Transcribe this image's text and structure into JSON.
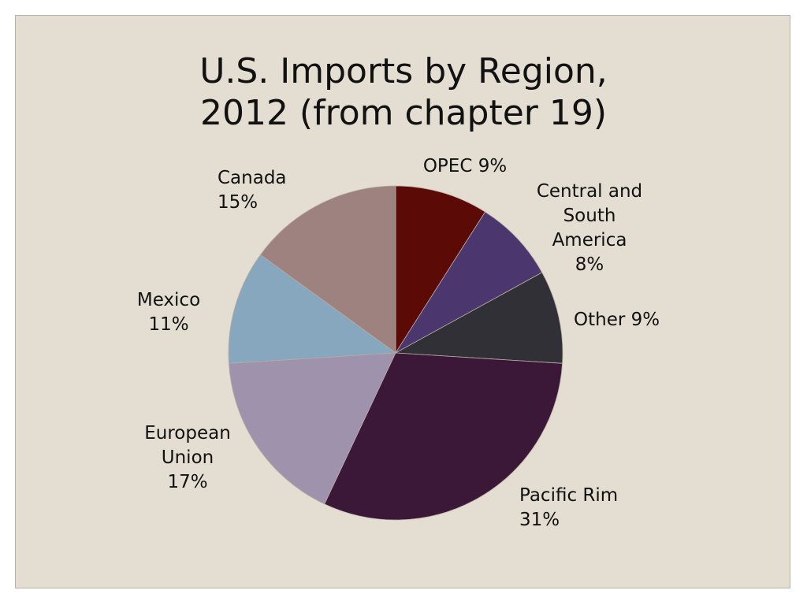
{
  "slide": {
    "title_line1": "U.S. Imports by Region,",
    "title_line2": "2012 (from chapter 19)"
  },
  "colors": {
    "background": "#e4ddd1",
    "text": "#111111"
  },
  "chart_data": {
    "type": "pie",
    "title": "U.S. Imports by Region, 2012 (from chapter 19)",
    "start_angle_deg": 0,
    "direction": "clockwise",
    "slices": [
      {
        "category": "OPEC",
        "value": 9,
        "label": "OPEC 9%",
        "color": "#5c0a05"
      },
      {
        "category": "Central and South America",
        "value": 8,
        "label": "Central and\nSouth\nAmerica\n8%",
        "color": "#4b366e"
      },
      {
        "category": "Other",
        "value": 9,
        "label": "Other 9%",
        "color": "#313036"
      },
      {
        "category": "Pacific Rim",
        "value": 31,
        "label": "Pacific Rim\n31%",
        "color": "#3c1838"
      },
      {
        "category": "European Union",
        "value": 17,
        "label": "European\nUnion\n17%",
        "color": "#9e92ad"
      },
      {
        "category": "Mexico",
        "value": 11,
        "label": "Mexico\n11%",
        "color": "#86a7bd"
      },
      {
        "category": "Canada",
        "value": 15,
        "label": "Canada\n15%",
        "color": "#9e8280"
      }
    ]
  }
}
